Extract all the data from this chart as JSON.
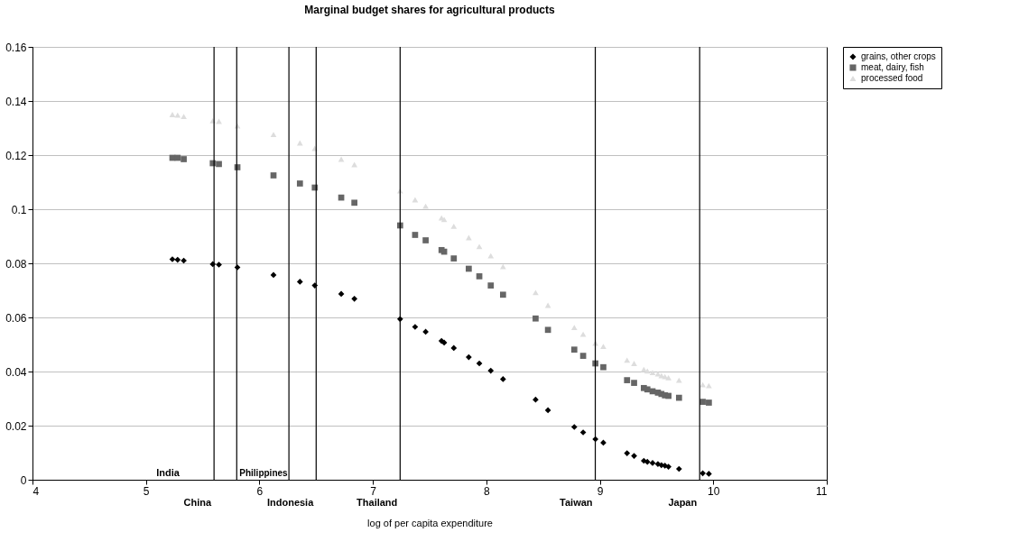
{
  "chart_data": {
    "type": "scatter",
    "title": "Marginal budget shares for agricultural products",
    "xlabel": "log of per capita expenditure",
    "x": [
      5.233,
      5.279,
      5.333,
      5.589,
      5.643,
      5.806,
      6.124,
      6.357,
      6.488,
      6.721,
      6.837,
      7.24,
      7.372,
      7.465,
      7.605,
      7.628,
      7.713,
      7.845,
      7.938,
      8.039,
      8.147,
      8.434,
      8.543,
      8.775,
      8.853,
      8.961,
      9.031,
      9.24,
      9.302,
      9.388,
      9.419,
      9.465,
      9.512,
      9.543,
      9.574,
      9.605,
      9.698,
      9.907,
      9.961
    ],
    "series": [
      {
        "name": "grains, other crops",
        "color": "#000000",
        "marker": "diamond",
        "values": [
          0.0815,
          0.0813,
          0.081,
          0.0797,
          0.0795,
          0.0785,
          0.0757,
          0.0732,
          0.0718,
          0.0687,
          0.0669,
          0.0594,
          0.0565,
          0.0547,
          0.0513,
          0.0507,
          0.0487,
          0.0453,
          0.043,
          0.0403,
          0.0372,
          0.0296,
          0.0257,
          0.0195,
          0.0175,
          0.015,
          0.0137,
          0.0098,
          0.0088,
          0.007,
          0.0066,
          0.0062,
          0.0058,
          0.0054,
          0.0052,
          0.0048,
          0.004,
          0.0024,
          0.0022
        ]
      },
      {
        "name": "meat, dairy, fish",
        "color": "#666666",
        "marker": "square",
        "values": [
          0.119,
          0.119,
          0.1185,
          0.117,
          0.1167,
          0.1155,
          0.1125,
          0.1095,
          0.108,
          0.1043,
          0.1024,
          0.094,
          0.0905,
          0.0885,
          0.0849,
          0.0843,
          0.0818,
          0.078,
          0.0752,
          0.0718,
          0.0684,
          0.0596,
          0.0554,
          0.0481,
          0.0458,
          0.043,
          0.0416,
          0.0368,
          0.0358,
          0.0339,
          0.0334,
          0.0327,
          0.0322,
          0.0317,
          0.0312,
          0.031,
          0.0303,
          0.0288,
          0.0285
        ]
      },
      {
        "name": "processed food",
        "color": "#dddddd",
        "marker": "triangle",
        "values": [
          0.135,
          0.1348,
          0.1343,
          0.1327,
          0.1325,
          0.1308,
          0.1276,
          0.1245,
          0.1225,
          0.1185,
          0.1165,
          0.1068,
          0.1035,
          0.1011,
          0.0968,
          0.0962,
          0.0937,
          0.0895,
          0.0862,
          0.0828,
          0.0788,
          0.0692,
          0.0645,
          0.0563,
          0.0538,
          0.0505,
          0.0493,
          0.0442,
          0.043,
          0.0408,
          0.0402,
          0.0396,
          0.0391,
          0.0385,
          0.0381,
          0.0377,
          0.0368,
          0.0351,
          0.0348
        ]
      }
    ],
    "xlim": [
      4,
      11
    ],
    "xticks": [
      4,
      5,
      6,
      7,
      8,
      9,
      10,
      11
    ],
    "ylim": [
      0,
      0.16
    ],
    "yticks": [
      0,
      0.02,
      0.04,
      0.06,
      0.08,
      0.1,
      0.12,
      0.14,
      0.16
    ],
    "grid": "y",
    "legend": "right",
    "ref_lines": [
      {
        "axis": "x",
        "value": 5.6,
        "color": "#000000",
        "label": "China"
      },
      {
        "axis": "x",
        "value": 5.8,
        "color": "#000000",
        "label": "Philippines"
      },
      {
        "axis": "x",
        "value": 6.26,
        "color": "#000000"
      },
      {
        "axis": "x",
        "value": 6.5,
        "color": "#000000",
        "label": "Indonesia"
      },
      {
        "axis": "x",
        "value": 7.24,
        "color": "#000000",
        "label": "Thailand"
      },
      {
        "axis": "x",
        "value": 8.96,
        "color": "#000000",
        "label": "Taiwan"
      },
      {
        "axis": "x",
        "value": 9.88,
        "color": "#000000",
        "label": "Japan"
      }
    ],
    "annotations": [
      "India"
    ]
  }
}
